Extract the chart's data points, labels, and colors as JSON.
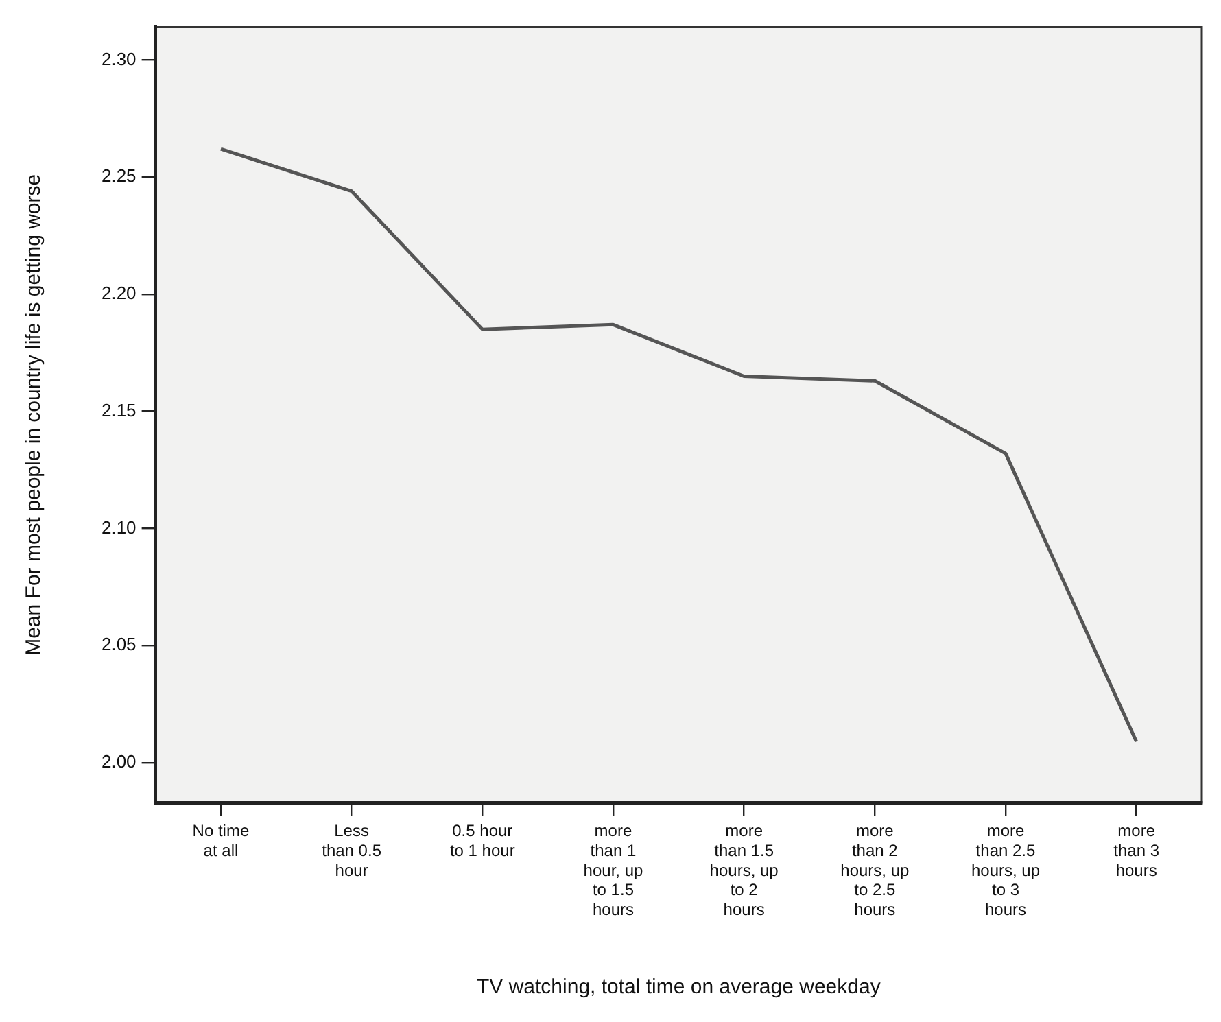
{
  "chart_data": {
    "type": "line",
    "xlabel": "TV watching, total time on average weekday",
    "ylabel": "Mean For most people in country life is getting worse",
    "categories": [
      "No time at all",
      "Less than 0.5 hour",
      "0.5 hour to 1 hour",
      "more than 1 hour, up to 1.5 hours",
      "more than 1.5 hours, up to 2 hours",
      "more than 2 hours, up to 2.5 hours",
      "more than 2.5 hours, up to 3 hours",
      "more than 3 hours"
    ],
    "series": [
      {
        "color": "#555555",
        "values": [
          2.262,
          2.244,
          2.185,
          2.187,
          2.165,
          2.163,
          2.132,
          2.009
        ]
      }
    ],
    "ylim": [
      1.983,
      2.314
    ],
    "yticks": [
      {
        "value": 2.0,
        "label": "2.00"
      },
      2.05,
      {
        "value": 2.1,
        "label": "2.10"
      },
      2.15,
      {
        "value": 2.2,
        "label": "2.20"
      },
      2.25,
      {
        "value": 2.3,
        "label": "2.30"
      }
    ],
    "grid": false,
    "legend": false,
    "marker": "none",
    "line_style": "solid"
  }
}
